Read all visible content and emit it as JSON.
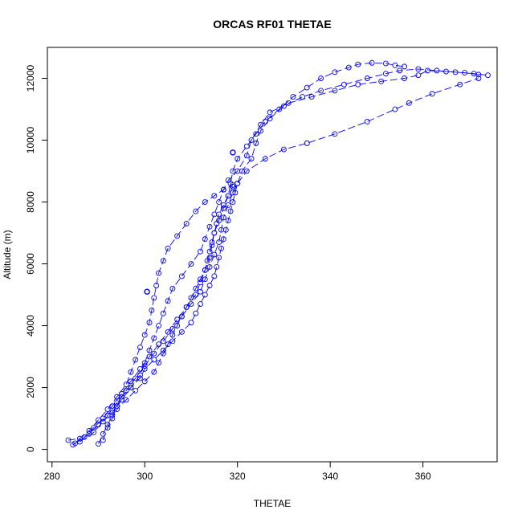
{
  "chart_data": {
    "type": "line",
    "title": "ORCAS RF01 THETAE",
    "xlabel": "THETAE",
    "ylabel": "Altitude (m)",
    "xlim": [
      279,
      376
    ],
    "ylim": [
      -400,
      13000
    ],
    "x_ticks": [
      280,
      300,
      320,
      340,
      360
    ],
    "y_ticks": [
      0,
      2000,
      4000,
      6000,
      8000,
      10000,
      12000
    ],
    "x_tick_labels": [
      "280",
      "300",
      "320",
      "340",
      "360"
    ],
    "y_tick_labels": [
      "0",
      "2000",
      "4000",
      "6000",
      "8000",
      "10000",
      "12000"
    ],
    "grid": false,
    "color": "#0000ff",
    "marker": "open-circle",
    "series": [
      {
        "points": [
          [
            284.5,
            150
          ],
          [
            287,
            400
          ],
          [
            289,
            700
          ],
          [
            291,
            1000
          ],
          [
            293,
            1400
          ],
          [
            295,
            1800
          ],
          [
            297,
            2200
          ],
          [
            299,
            2600
          ],
          [
            301,
            3000
          ],
          [
            303,
            3400
          ],
          [
            305,
            3800
          ],
          [
            307,
            4200
          ],
          [
            309,
            4600
          ],
          [
            311,
            5000
          ],
          [
            312,
            5400
          ],
          [
            313,
            5800
          ],
          [
            314,
            6200
          ],
          [
            314.5,
            6600
          ],
          [
            315,
            7000
          ],
          [
            316,
            7400
          ],
          [
            317,
            7800
          ],
          [
            318,
            8200
          ],
          [
            318.5,
            8600
          ],
          [
            319,
            9000
          ],
          [
            320,
            9400
          ],
          [
            322,
            9800
          ],
          [
            324,
            10200
          ],
          [
            326,
            10600
          ],
          [
            329,
            11000
          ],
          [
            332,
            11400
          ],
          [
            335,
            11700
          ],
          [
            338,
            12000
          ],
          [
            341,
            12200
          ],
          [
            344,
            12350
          ],
          [
            346,
            12450
          ],
          [
            349,
            12500
          ],
          [
            352,
            12480
          ],
          [
            354,
            12420
          ],
          [
            356,
            12380
          ]
        ]
      },
      {
        "points": [
          [
            285,
            200
          ],
          [
            288,
            500
          ],
          [
            290,
            800
          ],
          [
            292,
            1100
          ],
          [
            294,
            1500
          ],
          [
            296,
            1900
          ],
          [
            298,
            2300
          ],
          [
            300,
            2700
          ],
          [
            302,
            3100
          ],
          [
            304,
            3500
          ],
          [
            306,
            3900
          ],
          [
            308,
            4300
          ],
          [
            310,
            4700
          ],
          [
            312,
            5100
          ],
          [
            313,
            5500
          ],
          [
            314,
            5900
          ],
          [
            315,
            6300
          ],
          [
            316,
            6700
          ],
          [
            316.5,
            7100
          ],
          [
            317,
            7500
          ],
          [
            318,
            7900
          ],
          [
            319,
            8300
          ],
          [
            320,
            8600
          ],
          [
            321,
            9000
          ],
          [
            323,
            9400
          ],
          [
            324,
            9900
          ],
          [
            325,
            10300
          ],
          [
            327,
            10700
          ],
          [
            330,
            11100
          ],
          [
            334,
            11400
          ],
          [
            338,
            11600
          ],
          [
            343,
            11800
          ],
          [
            348,
            12000
          ],
          [
            352,
            12150
          ],
          [
            355,
            12250
          ],
          [
            359,
            12300
          ],
          [
            363,
            12250
          ],
          [
            367,
            12200
          ],
          [
            371,
            12150
          ],
          [
            374,
            12100
          ]
        ]
      },
      {
        "points": [
          [
            286,
            250
          ],
          [
            289,
            550
          ],
          [
            291,
            900
          ],
          [
            293,
            1200
          ],
          [
            295,
            1600
          ],
          [
            297,
            2000
          ],
          [
            299,
            2400
          ],
          [
            300,
            2800
          ],
          [
            301,
            3200
          ],
          [
            302,
            3600
          ],
          [
            303,
            4000
          ],
          [
            304,
            4400
          ],
          [
            305,
            4800
          ],
          [
            306,
            5200
          ],
          [
            308,
            5600
          ],
          [
            310,
            6000
          ],
          [
            312,
            6400
          ],
          [
            313,
            6800
          ],
          [
            314,
            7200
          ],
          [
            315,
            7600
          ],
          [
            316,
            8000
          ],
          [
            317,
            8400
          ],
          [
            318,
            8700
          ],
          [
            320,
            9000
          ],
          [
            322,
            9500
          ],
          [
            323,
            10000
          ],
          [
            325,
            10500
          ],
          [
            327,
            10900
          ],
          [
            331,
            11200
          ],
          [
            336,
            11400
          ],
          [
            341,
            11600
          ],
          [
            346,
            11800
          ],
          [
            351,
            11900
          ],
          [
            356,
            12000
          ],
          [
            359,
            12100
          ],
          [
            361,
            12250
          ],
          [
            365,
            12220
          ],
          [
            369,
            12180
          ],
          [
            372,
            12120
          ]
        ]
      },
      {
        "points": [
          [
            283.5,
            300
          ],
          [
            286,
            350
          ],
          [
            288,
            600
          ],
          [
            290,
            950
          ],
          [
            292,
            1300
          ],
          [
            294,
            1700
          ],
          [
            296,
            2100
          ],
          [
            297,
            2500
          ],
          [
            298,
            2900
          ],
          [
            299,
            3300
          ],
          [
            300,
            3700
          ],
          [
            301,
            4100
          ],
          [
            301.5,
            4500
          ],
          [
            302,
            4900
          ],
          [
            302.5,
            5300
          ],
          [
            303,
            5700
          ],
          [
            304,
            6100
          ],
          [
            305,
            6500
          ],
          [
            307,
            6900
          ],
          [
            309,
            7300
          ],
          [
            311,
            7700
          ],
          [
            313,
            8000
          ],
          [
            315,
            8200
          ],
          [
            317,
            8400
          ],
          [
            319,
            8550
          ]
        ]
      },
      {
        "points": [
          [
            290,
            180
          ],
          [
            291,
            500
          ],
          [
            292,
            800
          ],
          [
            293,
            1100
          ],
          [
            294,
            1400
          ],
          [
            295,
            1700
          ],
          [
            297,
            2000
          ],
          [
            299,
            2300
          ],
          [
            300,
            2600
          ],
          [
            302,
            2900
          ],
          [
            304,
            3200
          ],
          [
            306,
            3500
          ],
          [
            308,
            3800
          ],
          [
            310,
            4100
          ],
          [
            311,
            4400
          ],
          [
            312,
            4700
          ],
          [
            313,
            5000
          ],
          [
            314,
            5300
          ],
          [
            315,
            5600
          ],
          [
            315.5,
            5900
          ],
          [
            316,
            6200
          ],
          [
            316.5,
            6500
          ],
          [
            317,
            6800
          ],
          [
            317.5,
            7100
          ],
          [
            318,
            7400
          ],
          [
            318.5,
            7700
          ],
          [
            319,
            8000
          ],
          [
            319.5,
            8300
          ],
          [
            320,
            8600
          ],
          [
            322,
            9000
          ],
          [
            326,
            9400
          ],
          [
            330,
            9700
          ],
          [
            335,
            9900
          ],
          [
            341,
            10200
          ],
          [
            348,
            10600
          ],
          [
            354,
            11000
          ],
          [
            357,
            11200
          ],
          [
            362,
            11500
          ],
          [
            368,
            11800
          ],
          [
            372,
            12000
          ]
        ]
      },
      {
        "points": [
          [
            291,
            300
          ],
          [
            292,
            700
          ],
          [
            293,
            1000
          ],
          [
            294,
            1300
          ],
          [
            296,
            1600
          ],
          [
            298,
            1900
          ],
          [
            300,
            2200
          ],
          [
            302,
            2500
          ],
          [
            303,
            2800
          ],
          [
            304,
            3100
          ],
          [
            305,
            3400
          ],
          [
            306,
            3700
          ],
          [
            307,
            4000
          ],
          [
            308,
            4300
          ],
          [
            309,
            4600
          ],
          [
            310,
            4900
          ],
          [
            311,
            5200
          ],
          [
            312,
            5500
          ],
          [
            313,
            5800
          ],
          [
            313.5,
            6100
          ],
          [
            314,
            6400
          ],
          [
            314.5,
            6700
          ],
          [
            315,
            7000
          ],
          [
            315.5,
            7300
          ],
          [
            316,
            7600
          ],
          [
            317,
            7900
          ],
          [
            318,
            8200
          ],
          [
            319,
            8500
          ]
        ]
      }
    ],
    "isolated_points": [
      [
        300.5,
        5100
      ],
      [
        319,
        9600
      ]
    ]
  }
}
